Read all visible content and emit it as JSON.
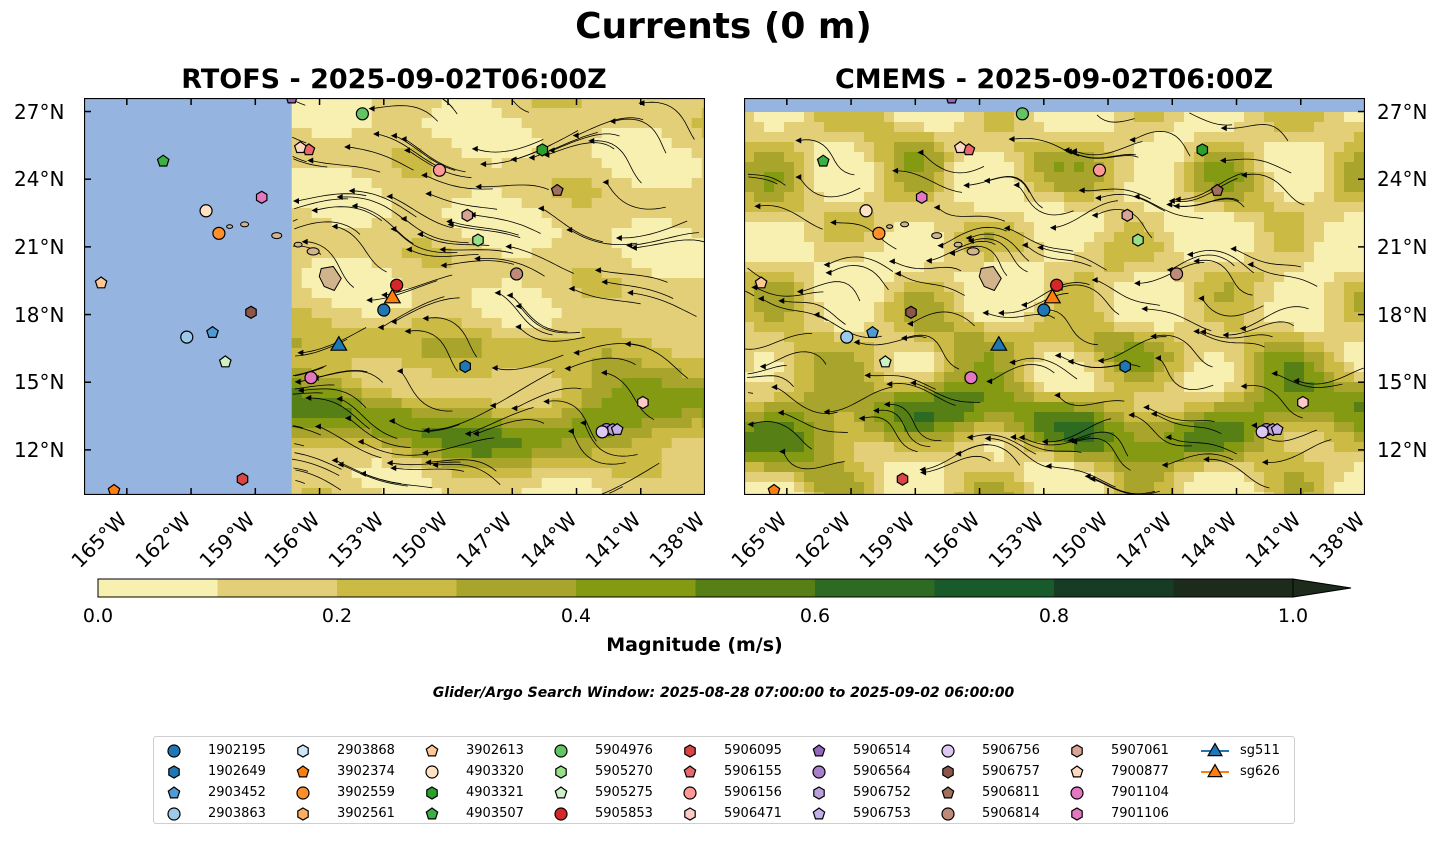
{
  "figure": {
    "suptitle": "Currents (0 m)",
    "search_window": "Glider/Argo Search Window: 2025-08-28 07:00:00 to 2025-09-02 06:00:00"
  },
  "panels": [
    {
      "key": "left",
      "title": "RTOFS - 2025-09-02T06:00Z"
    },
    {
      "key": "right",
      "title": "CMEMS - 2025-09-02T06:00Z"
    }
  ],
  "map": {
    "lon_range": [
      -167,
      -138
    ],
    "lat_range": [
      10,
      27.6
    ],
    "lat_ticks": [
      {
        "value": 27,
        "label": "27°N"
      },
      {
        "value": 24,
        "label": "24°N"
      },
      {
        "value": 21,
        "label": "21°N"
      },
      {
        "value": 18,
        "label": "18°N"
      },
      {
        "value": 15,
        "label": "15°N"
      },
      {
        "value": 12,
        "label": "12°N"
      }
    ],
    "lon_ticks": [
      {
        "value": -165,
        "label": "165°W"
      },
      {
        "value": -162,
        "label": "162°W"
      },
      {
        "value": -159,
        "label": "159°W"
      },
      {
        "value": -156,
        "label": "156°W"
      },
      {
        "value": -153,
        "label": "153°W"
      },
      {
        "value": -150,
        "label": "150°W"
      },
      {
        "value": -147,
        "label": "147°W"
      },
      {
        "value": -144,
        "label": "144°W"
      },
      {
        "value": -141,
        "label": "141°W"
      },
      {
        "value": -138,
        "label": "138°W"
      }
    ],
    "rtofs_domain_west_edge_lon": -157.3,
    "colors": {
      "nodata": "#95b4e0",
      "land": "#d2b48c"
    }
  },
  "colorbar": {
    "label": "Magnitude (m/s)",
    "ticks": [
      "0.0",
      "0.2",
      "0.4",
      "0.6",
      "0.8",
      "1.0"
    ],
    "levels": [
      0,
      0.1,
      0.2,
      0.3,
      0.4,
      0.5,
      0.6,
      0.7,
      0.8,
      0.9,
      1.0
    ],
    "colors": [
      "#f8f0b0",
      "#e3cf77",
      "#cbbb45",
      "#a9a52c",
      "#849a12",
      "#567f15",
      "#2c6b21",
      "#195a2b",
      "#173c25",
      "#1c2b1c"
    ],
    "extend": "max"
  },
  "legend": {
    "items": [
      {
        "label": "1902195",
        "marker": "circle",
        "color": "#1f77b4"
      },
      {
        "label": "1902649",
        "marker": "hexagon",
        "color": "#1f77b4"
      },
      {
        "label": "2903452",
        "marker": "pentagon",
        "color": "#4f9bd6"
      },
      {
        "label": "2903863",
        "marker": "circle",
        "color": "#9ecae9"
      },
      {
        "label": "2903868",
        "marker": "hexagon",
        "color": "#cfe6f6"
      },
      {
        "label": "3902374",
        "marker": "pentagon",
        "color": "#ff7f0e"
      },
      {
        "label": "3902559",
        "marker": "circle",
        "color": "#ff8f2a"
      },
      {
        "label": "3902561",
        "marker": "hexagon",
        "color": "#ffad60"
      },
      {
        "label": "3902613",
        "marker": "pentagon",
        "color": "#ffc896"
      },
      {
        "label": "4903320",
        "marker": "circle",
        "color": "#ffe2c4"
      },
      {
        "label": "4903321",
        "marker": "hexagon",
        "color": "#2ca02c"
      },
      {
        "label": "4903507",
        "marker": "pentagon",
        "color": "#3cb043"
      },
      {
        "label": "5904976",
        "marker": "circle",
        "color": "#62c462"
      },
      {
        "label": "5905270",
        "marker": "hexagon",
        "color": "#98df8a"
      },
      {
        "label": "5905275",
        "marker": "pentagon",
        "color": "#ccf2c6"
      },
      {
        "label": "5905853",
        "marker": "circle",
        "color": "#d62728"
      },
      {
        "label": "5906095",
        "marker": "hexagon",
        "color": "#d94445"
      },
      {
        "label": "5906155",
        "marker": "pentagon",
        "color": "#e8676a"
      },
      {
        "label": "5906156",
        "marker": "circle",
        "color": "#ff9896"
      },
      {
        "label": "5906471",
        "marker": "hexagon",
        "color": "#ffc9c8"
      },
      {
        "label": "5906514",
        "marker": "pentagon",
        "color": "#9467bd"
      },
      {
        "label": "5906564",
        "marker": "circle",
        "color": "#a87fcb"
      },
      {
        "label": "5906752",
        "marker": "hexagon",
        "color": "#bc9fdb"
      },
      {
        "label": "5906753",
        "marker": "pentagon",
        "color": "#c5b0e9"
      },
      {
        "label": "5906756",
        "marker": "circle",
        "color": "#dcc8f2"
      },
      {
        "label": "5906757",
        "marker": "hexagon",
        "color": "#8c564b"
      },
      {
        "label": "5906811",
        "marker": "pentagon",
        "color": "#a0705f"
      },
      {
        "label": "5906814",
        "marker": "circle",
        "color": "#bf8a7a"
      },
      {
        "label": "5907061",
        "marker": "hexagon",
        "color": "#d9a395"
      },
      {
        "label": "7900877",
        "marker": "pentagon",
        "color": "#ffd8c2"
      },
      {
        "label": "7901104",
        "marker": "circle",
        "color": "#e377c2"
      },
      {
        "label": "7901106",
        "marker": "hexagon",
        "color": "#e377c2"
      },
      {
        "label": "sg511",
        "marker": "triangle-line",
        "color": "#1f77b4"
      },
      {
        "label": "sg626",
        "marker": "triangle-line",
        "color": "#ff7f0e"
      }
    ]
  },
  "observations": [
    {
      "id": "1902195",
      "lon": -153.0,
      "lat": 18.2
    },
    {
      "id": "1902649",
      "lon": -149.2,
      "lat": 15.7
    },
    {
      "id": "2903452",
      "lon": -161.0,
      "lat": 17.2
    },
    {
      "id": "2903863",
      "lon": -162.2,
      "lat": 17.0
    },
    {
      "id": "3902374",
      "lon": -165.6,
      "lat": 10.2
    },
    {
      "id": "3902559",
      "lon": -160.7,
      "lat": 21.6
    },
    {
      "id": "3902613",
      "lon": -166.2,
      "lat": 19.4
    },
    {
      "id": "4903320",
      "lon": -161.3,
      "lat": 22.6
    },
    {
      "id": "4903321",
      "lon": -145.6,
      "lat": 25.3
    },
    {
      "id": "4903507",
      "lon": -163.3,
      "lat": 24.8
    },
    {
      "id": "5904976",
      "lon": -154.0,
      "lat": 26.9
    },
    {
      "id": "5905270",
      "lon": -148.6,
      "lat": 21.3
    },
    {
      "id": "5905275",
      "lon": -160.4,
      "lat": 15.9
    },
    {
      "id": "5905853",
      "lon": -152.4,
      "lat": 19.3
    },
    {
      "id": "5906095",
      "lon": -159.6,
      "lat": 10.7
    },
    {
      "id": "5906155",
      "lon": -156.5,
      "lat": 25.3
    },
    {
      "id": "5906156",
      "lon": -150.4,
      "lat": 24.4
    },
    {
      "id": "5906471",
      "lon": -140.9,
      "lat": 14.1
    },
    {
      "id": "5906514",
      "lon": -157.3,
      "lat": 27.6
    },
    {
      "id": "5906564",
      "lon": -142.6,
      "lat": 12.9
    },
    {
      "id": "5906752",
      "lon": -142.3,
      "lat": 12.9
    },
    {
      "id": "5906753",
      "lon": -142.1,
      "lat": 12.9
    },
    {
      "id": "5906756",
      "lon": -142.8,
      "lat": 12.8
    },
    {
      "id": "5906757",
      "lon": -159.2,
      "lat": 18.1
    },
    {
      "id": "5906811",
      "lon": -144.9,
      "lat": 23.5
    },
    {
      "id": "5906814",
      "lon": -146.8,
      "lat": 19.8
    },
    {
      "id": "5907061",
      "lon": -149.1,
      "lat": 22.4
    },
    {
      "id": "7900877",
      "lon": -156.9,
      "lat": 25.4
    },
    {
      "id": "7901104",
      "lon": -156.4,
      "lat": 15.2
    },
    {
      "id": "7901106",
      "lon": -158.7,
      "lat": 23.2
    },
    {
      "id": "sg511",
      "lon": -155.1,
      "lat": 16.7
    },
    {
      "id": "sg626",
      "lon": -152.6,
      "lat": 18.8
    }
  ]
}
